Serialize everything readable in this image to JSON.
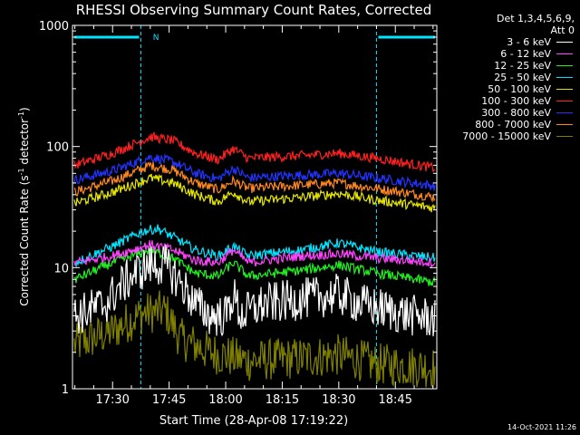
{
  "chart_data": {
    "type": "line",
    "title": "RHESSI Observing Summary Count Rates, Corrected",
    "xlabel": "Start Time (28-Apr-08 17:19:22)",
    "ylabel_main": "Corrected Count Rate (s",
    "ylabel_sup1": "-1",
    "ylabel_mid": " detector",
    "ylabel_sup2": "-1",
    "ylabel_end": ")",
    "y_scale": "log",
    "ylim": [
      1,
      1000
    ],
    "y_ticks": [
      {
        "value": 1,
        "label": "1"
      },
      {
        "value": 10,
        "label": "10"
      },
      {
        "value": 100,
        "label": "100"
      },
      {
        "value": 1000,
        "label": "1000"
      }
    ],
    "xlim_min": [
      19.37,
      116
    ],
    "x_ticks": [
      {
        "value": 30,
        "label": "17:30"
      },
      {
        "value": 45,
        "label": "17:45"
      },
      {
        "value": 60,
        "label": "18:00"
      },
      {
        "value": 75,
        "label": "18:15"
      },
      {
        "value": 90,
        "label": "18:30"
      },
      {
        "value": 105,
        "label": "18:45"
      }
    ],
    "night_intervals_min": [
      [
        19.37,
        37.5
      ],
      [
        100,
        116
      ]
    ],
    "saa_marker": {
      "x_min": 39.5,
      "label": "N"
    },
    "series": [
      {
        "name": "3 - 6 keV",
        "color": "#ffffff",
        "approx_min_values": [
          [
            20,
            4
          ],
          [
            28,
            5
          ],
          [
            32,
            7
          ],
          [
            36,
            9
          ],
          [
            40,
            10.5
          ],
          [
            44,
            10.5
          ],
          [
            48,
            7.5
          ],
          [
            52,
            5
          ],
          [
            56,
            4
          ],
          [
            60,
            4
          ],
          [
            62,
            6
          ],
          [
            64,
            4
          ],
          [
            70,
            5
          ],
          [
            80,
            5.5
          ],
          [
            90,
            6
          ],
          [
            96,
            5
          ],
          [
            102,
            4.5
          ],
          [
            110,
            4
          ],
          [
            116,
            3.8
          ]
        ]
      },
      {
        "name": "6 - 12 keV",
        "color": "#ff44ff",
        "approx_min_values": [
          [
            20,
            11
          ],
          [
            30,
            12.5
          ],
          [
            40,
            15.5
          ],
          [
            46,
            14
          ],
          [
            52,
            11.5
          ],
          [
            58,
            11
          ],
          [
            62,
            14
          ],
          [
            66,
            11
          ],
          [
            80,
            12.5
          ],
          [
            90,
            13
          ],
          [
            100,
            12
          ],
          [
            116,
            11
          ]
        ]
      },
      {
        "name": "12 - 25 keV",
        "color": "#22ee22",
        "approx_min_values": [
          [
            20,
            8
          ],
          [
            30,
            11
          ],
          [
            40,
            14
          ],
          [
            46,
            12
          ],
          [
            52,
            9
          ],
          [
            58,
            8.5
          ],
          [
            62,
            11
          ],
          [
            66,
            8.5
          ],
          [
            80,
            9.5
          ],
          [
            90,
            10.5
          ],
          [
            100,
            9
          ],
          [
            116,
            7.5
          ]
        ]
      },
      {
        "name": "25 - 50 keV",
        "color": "#00e5ff",
        "approx_min_values": [
          [
            20,
            11
          ],
          [
            30,
            15
          ],
          [
            38,
            20
          ],
          [
            42,
            21
          ],
          [
            46,
            18
          ],
          [
            52,
            14
          ],
          [
            58,
            12.5
          ],
          [
            62,
            15
          ],
          [
            66,
            12.5
          ],
          [
            80,
            14
          ],
          [
            90,
            16
          ],
          [
            100,
            13.5
          ],
          [
            116,
            12
          ]
        ]
      },
      {
        "name": "50 - 100 keV",
        "color": "#e6e600",
        "approx_min_values": [
          [
            20,
            34
          ],
          [
            30,
            42
          ],
          [
            40,
            55
          ],
          [
            46,
            50
          ],
          [
            52,
            40
          ],
          [
            58,
            35
          ],
          [
            62,
            42
          ],
          [
            66,
            35
          ],
          [
            80,
            38
          ],
          [
            90,
            41
          ],
          [
            100,
            36
          ],
          [
            116,
            31
          ]
        ]
      },
      {
        "name": "100 - 300 keV",
        "color": "#ff2020",
        "approx_min_values": [
          [
            20,
            70
          ],
          [
            30,
            88
          ],
          [
            40,
            120
          ],
          [
            46,
            112
          ],
          [
            52,
            88
          ],
          [
            58,
            78
          ],
          [
            62,
            96
          ],
          [
            66,
            80
          ],
          [
            80,
            84
          ],
          [
            90,
            88
          ],
          [
            100,
            80
          ],
          [
            116,
            66
          ]
        ]
      },
      {
        "name": "300 - 800 keV",
        "color": "#2233ff",
        "approx_min_values": [
          [
            20,
            53
          ],
          [
            30,
            63
          ],
          [
            40,
            82
          ],
          [
            46,
            75
          ],
          [
            52,
            60
          ],
          [
            58,
            54
          ],
          [
            62,
            66
          ],
          [
            66,
            55
          ],
          [
            80,
            58
          ],
          [
            90,
            60
          ],
          [
            100,
            55
          ],
          [
            116,
            47
          ]
        ]
      },
      {
        "name": "800 - 7000 keV",
        "color": "#ff8820",
        "approx_min_values": [
          [
            20,
            42
          ],
          [
            30,
            52
          ],
          [
            40,
            70
          ],
          [
            46,
            64
          ],
          [
            52,
            50
          ],
          [
            58,
            44
          ],
          [
            62,
            52
          ],
          [
            66,
            45
          ],
          [
            80,
            48
          ],
          [
            90,
            50
          ],
          [
            100,
            45
          ],
          [
            116,
            38
          ]
        ]
      },
      {
        "name": "7000 - 15000 keV",
        "color": "#808000",
        "approx_min_values": [
          [
            20,
            2.3
          ],
          [
            30,
            3
          ],
          [
            38,
            4.2
          ],
          [
            44,
            4.4
          ],
          [
            48,
            2.6
          ],
          [
            56,
            2
          ],
          [
            66,
            1.7
          ],
          [
            80,
            1.8
          ],
          [
            90,
            1.9
          ],
          [
            100,
            1.6
          ],
          [
            116,
            1.5
          ]
        ]
      }
    ]
  },
  "legend": {
    "header_line1": "Det 1,3,4,5,6,9,",
    "header_line2": "Att 0"
  },
  "timestamp": "14-Oct-2021 11:26"
}
